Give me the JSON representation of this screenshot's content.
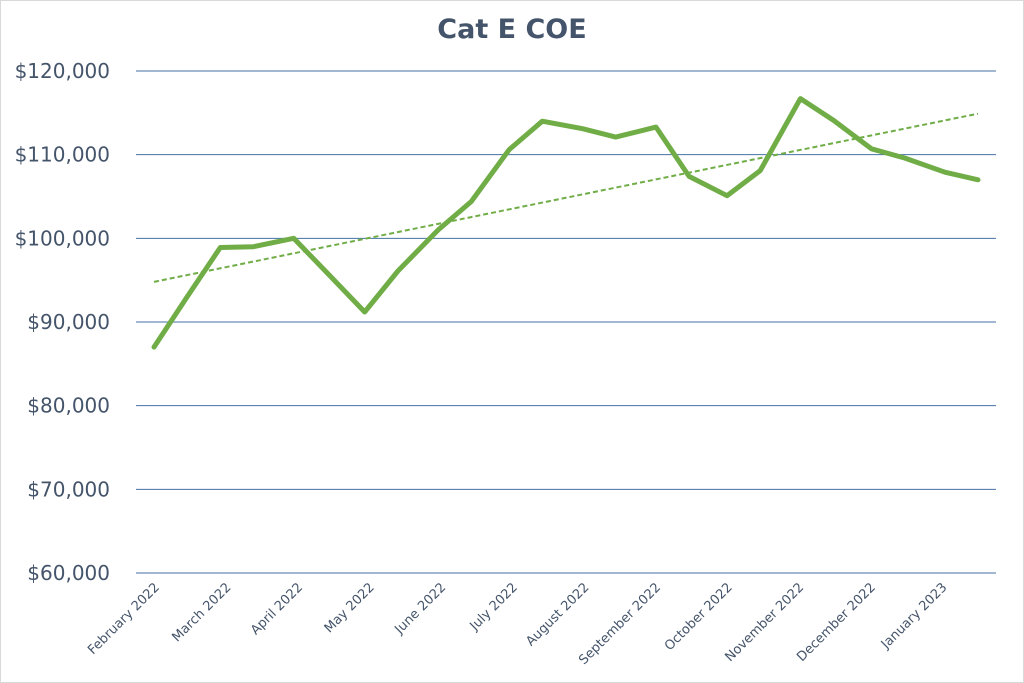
{
  "chart_data": {
    "type": "line",
    "title": "Cat E COE",
    "xlabel": "",
    "ylabel": "",
    "ylim": [
      60000,
      120000
    ],
    "y_ticks": [
      "$60,000",
      "$70,000",
      "$80,000",
      "$90,000",
      "$100,000",
      "$110,000",
      "$120,000"
    ],
    "y_tick_values": [
      60000,
      70000,
      80000,
      90000,
      100000,
      110000,
      120000
    ],
    "x_tick_labels": [
      "February 2022",
      "March 2022",
      "April 2022",
      "May 2022",
      "June 2022",
      "July 2022",
      "August 2022",
      "September 2022",
      "October 2022",
      "November 2022",
      "December 2022",
      "January 2023"
    ],
    "grid": "horizontal",
    "legend": "none",
    "series": [
      {
        "color": "#70ad47",
        "x": [
          "2022-02-01",
          "2022-02-15",
          "2022-03-01",
          "2022-03-15",
          "2022-04-01",
          "2022-04-15",
          "2022-05-01",
          "2022-05-15",
          "2022-06-01",
          "2022-06-15",
          "2022-07-01",
          "2022-07-15",
          "2022-08-01",
          "2022-08-15",
          "2022-09-01",
          "2022-09-15",
          "2022-10-01",
          "2022-10-15",
          "2022-11-01",
          "2022-11-15",
          "2022-12-01",
          "2022-12-15",
          "2023-01-01",
          "2023-01-15"
        ],
        "values": [
          87000,
          93000,
          98900,
          99000,
          100000,
          95900,
          91200,
          96100,
          101000,
          104400,
          110600,
          114000,
          113100,
          112100,
          113300,
          107400,
          105100,
          108100,
          116700,
          114100,
          110700,
          109600,
          107900,
          107000
        ]
      }
    ],
    "trendline": {
      "style": "dashed",
      "color": "#70ad47",
      "start_value": 94800,
      "end_value": 114900
    }
  }
}
